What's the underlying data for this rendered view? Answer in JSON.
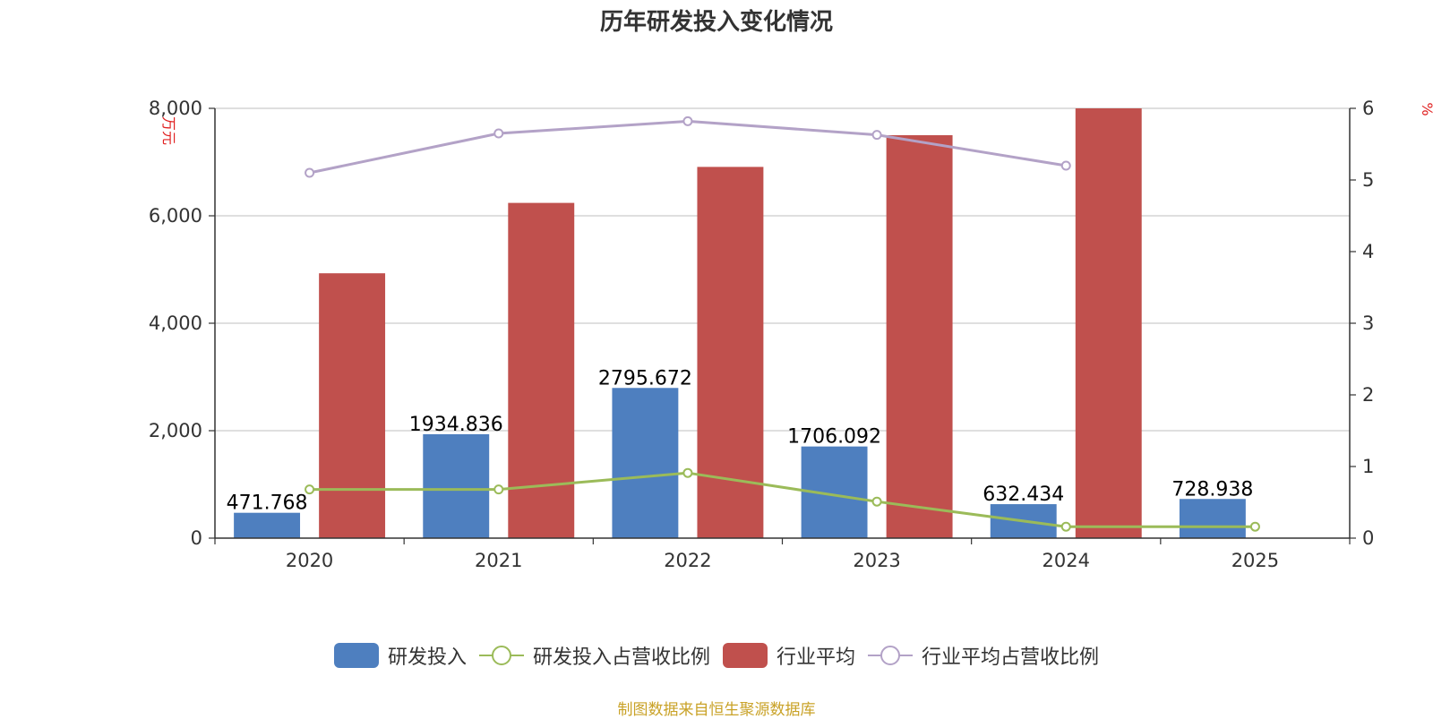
{
  "chart_data": {
    "type": "bar",
    "title": "历年研发投入变化情况",
    "categories": [
      "2020",
      "2021",
      "2022",
      "2023",
      "2024",
      "2025"
    ],
    "left_axis": {
      "unit": "万元",
      "ylim": [
        0,
        8000
      ],
      "ticks": [
        "0",
        "2,000",
        "4,000",
        "6,000",
        "8,000"
      ]
    },
    "right_axis": {
      "unit": "%",
      "ylim": [
        0,
        6
      ],
      "ticks": [
        "0",
        "1",
        "2",
        "3",
        "4",
        "5",
        "6"
      ]
    },
    "grid": true,
    "legend_position": "bottom",
    "series": [
      {
        "name": "研发投入",
        "kind": "bar",
        "axis": "left",
        "color": "#4e7fbf",
        "values": [
          471.768,
          1934.836,
          2795.672,
          1706.092,
          632.434,
          728.938
        ],
        "labels": [
          "471.768",
          "1934.836",
          "2795.672",
          "1706.092",
          "632.434",
          "728.938"
        ]
      },
      {
        "name": "研发投入占营收比例",
        "kind": "line",
        "axis": "right",
        "color": "#9bbb59",
        "values": [
          0.68,
          0.68,
          0.91,
          0.51,
          0.16,
          0.16
        ]
      },
      {
        "name": "行业平均",
        "kind": "bar",
        "axis": "left",
        "color": "#c0504d",
        "values": [
          4930,
          6240,
          6910,
          7500,
          8000,
          null
        ]
      },
      {
        "name": "行业平均占营收比例",
        "kind": "line",
        "axis": "right",
        "color": "#b3a2c7",
        "values": [
          5.1,
          5.65,
          5.82,
          5.63,
          5.2,
          null
        ]
      }
    ]
  },
  "source": "制图数据来自恒生聚源数据库"
}
